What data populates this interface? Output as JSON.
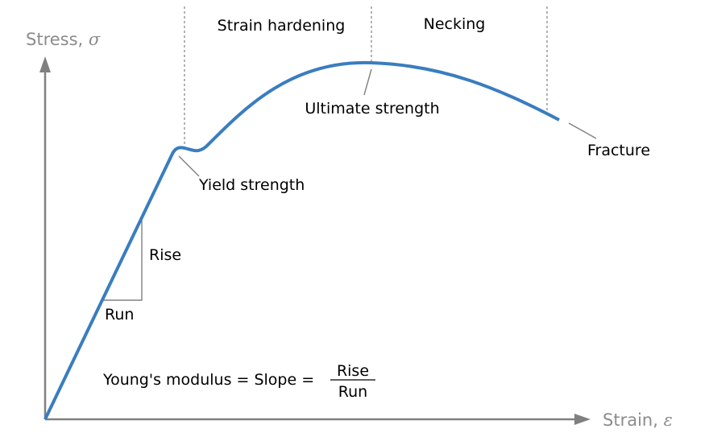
{
  "diagram": {
    "y_axis_label": "Stress, ",
    "y_axis_symbol": "σ",
    "x_axis_label": "Strain, ",
    "x_axis_symbol": "ε",
    "regions": [
      "Strain hardening",
      "Necking"
    ],
    "annotations": {
      "yield": "Yield strength",
      "ultimate": "Ultimate strength",
      "fracture": "Fracture",
      "rise": "Rise",
      "run": "Run"
    },
    "formula": {
      "lhs": "Young's modulus = Slope = ",
      "numerator": "Rise",
      "denominator": "Run"
    },
    "colors": {
      "curve": "#3a7dbf",
      "axes": "#808080",
      "guides": "#808080",
      "text": "#000000",
      "axis_text": "#8c8c8c"
    }
  }
}
